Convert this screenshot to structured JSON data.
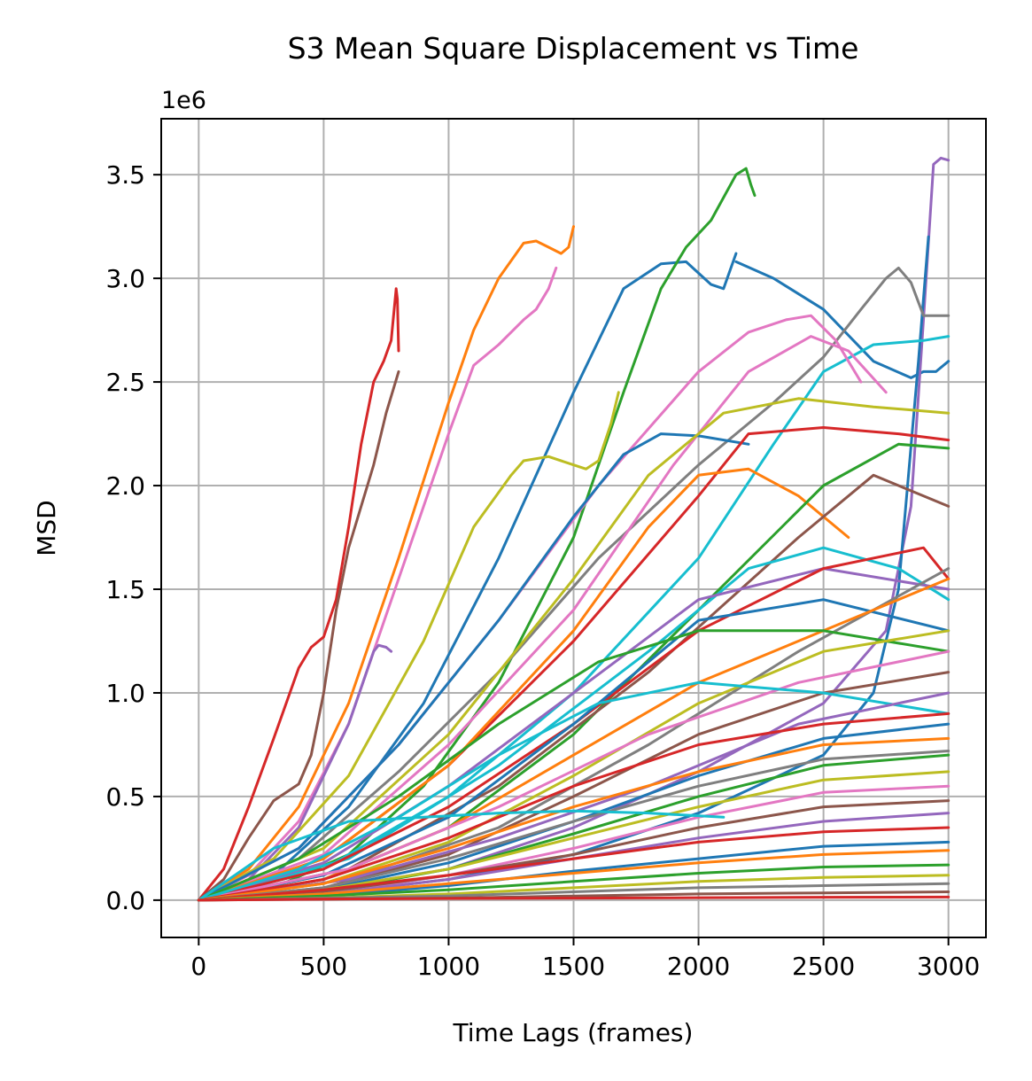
{
  "chart_data": {
    "type": "line",
    "title": "S3 Mean Square Displacement vs Time",
    "xlabel": "Time Lags (frames)",
    "ylabel": "MSD",
    "y_offset_label": "1e6",
    "xlim": [
      -150,
      3150
    ],
    "ylim": [
      -0.18,
      3.77
    ],
    "y_scale_note": "values in units of 1e6",
    "xticks": [
      0,
      500,
      1000,
      1500,
      2000,
      2500,
      3000
    ],
    "xtick_labels": [
      "0",
      "500",
      "1000",
      "1500",
      "2000",
      "2500",
      "3000"
    ],
    "yticks": [
      0.0,
      0.5,
      1.0,
      1.5,
      2.0,
      2.5,
      3.0,
      3.5
    ],
    "ytick_labels": [
      "0.0",
      "0.5",
      "1.0",
      "1.5",
      "2.0",
      "2.5",
      "3.0",
      "3.5"
    ],
    "grid": true,
    "colors": [
      "#1f77b4",
      "#ff7f0e",
      "#2ca02c",
      "#d62728",
      "#9467bd",
      "#8c564b",
      "#e377c2",
      "#7f7f7f",
      "#bcbd22",
      "#17becf"
    ],
    "series": [
      {
        "color": "#d62728",
        "x": [
          0,
          100,
          200,
          300,
          400,
          450,
          500,
          550,
          600,
          650,
          700,
          740,
          770,
          790,
          795,
          800
        ],
        "y": [
          0,
          0.15,
          0.45,
          0.78,
          1.12,
          1.22,
          1.27,
          1.45,
          1.8,
          2.2,
          2.5,
          2.6,
          2.7,
          2.95,
          2.9,
          2.65
        ]
      },
      {
        "color": "#8c564b",
        "x": [
          0,
          100,
          200,
          300,
          400,
          450,
          500,
          550,
          600,
          650,
          700,
          750,
          800
        ],
        "y": [
          0,
          0.1,
          0.3,
          0.48,
          0.56,
          0.7,
          1.0,
          1.4,
          1.7,
          1.9,
          2.1,
          2.35,
          2.55
        ]
      },
      {
        "color": "#ff7f0e",
        "x": [
          0,
          200,
          400,
          600,
          800,
          1000,
          1100,
          1200,
          1300,
          1350,
          1400,
          1450,
          1480,
          1500
        ],
        "y": [
          0,
          0.15,
          0.45,
          0.95,
          1.65,
          2.4,
          2.75,
          3.0,
          3.17,
          3.18,
          3.15,
          3.12,
          3.15,
          3.25
        ]
      },
      {
        "color": "#e377c2",
        "x": [
          0,
          200,
          400,
          600,
          800,
          1000,
          1100,
          1200,
          1300,
          1350,
          1400,
          1430
        ],
        "y": [
          0,
          0.12,
          0.38,
          0.85,
          1.55,
          2.25,
          2.58,
          2.68,
          2.8,
          2.85,
          2.95,
          3.05
        ]
      },
      {
        "color": "#9467bd",
        "x": [
          0,
          200,
          400,
          600,
          700,
          720,
          750,
          770
        ],
        "y": [
          0,
          0.1,
          0.35,
          0.85,
          1.2,
          1.23,
          1.22,
          1.2
        ]
      },
      {
        "color": "#1f77b4",
        "x": [
          0,
          300,
          600,
          900,
          1200,
          1500,
          1700,
          1850,
          1950,
          2050,
          2100,
          2150
        ],
        "y": [
          0,
          0.12,
          0.45,
          0.95,
          1.65,
          2.45,
          2.95,
          3.07,
          3.08,
          2.97,
          2.95,
          3.12
        ]
      },
      {
        "color": "#1f77b4",
        "x": [
          2150,
          2300,
          2500,
          2700,
          2850,
          2900,
          2950,
          3000
        ],
        "y": [
          3.08,
          3.0,
          2.85,
          2.6,
          2.52,
          2.55,
          2.55,
          2.6
        ]
      },
      {
        "color": "#2ca02c",
        "x": [
          0,
          300,
          600,
          900,
          1200,
          1500,
          1700,
          1850,
          1950,
          2050,
          2150,
          2190,
          2210,
          2225
        ],
        "y": [
          0,
          0.06,
          0.22,
          0.55,
          1.05,
          1.75,
          2.45,
          2.95,
          3.15,
          3.28,
          3.5,
          3.53,
          3.45,
          3.4
        ]
      },
      {
        "color": "#bcbd22",
        "x": [
          0,
          300,
          600,
          900,
          1100,
          1250,
          1300,
          1400,
          1500,
          1550,
          1600,
          1650,
          1680
        ],
        "y": [
          0,
          0.2,
          0.6,
          1.25,
          1.8,
          2.05,
          2.12,
          2.14,
          2.1,
          2.08,
          2.12,
          2.3,
          2.45
        ]
      },
      {
        "color": "#9467bd",
        "x": [
          0,
          500,
          1000,
          1500,
          2000,
          2500,
          2750,
          2850,
          2900,
          2940,
          2970,
          3000
        ],
        "y": [
          0,
          0.05,
          0.15,
          0.35,
          0.62,
          0.95,
          1.3,
          1.9,
          2.8,
          3.55,
          3.58,
          3.57
        ]
      },
      {
        "color": "#1f77b4",
        "x": [
          0,
          500,
          1000,
          1500,
          2000,
          2500,
          2700,
          2800,
          2880,
          2920
        ],
        "y": [
          0,
          0.03,
          0.1,
          0.22,
          0.42,
          0.7,
          1.0,
          1.5,
          2.6,
          3.2
        ]
      },
      {
        "color": "#7f7f7f",
        "x": [
          0,
          400,
          800,
          1200,
          1600,
          2000,
          2300,
          2500,
          2650,
          2750,
          2800,
          2850,
          2900,
          3000
        ],
        "y": [
          0,
          0.2,
          0.62,
          1.1,
          1.65,
          2.1,
          2.4,
          2.62,
          2.85,
          3.0,
          3.05,
          2.98,
          2.82,
          2.82
        ]
      },
      {
        "color": "#17becf",
        "x": [
          0,
          500,
          1000,
          1500,
          2000,
          2300,
          2500,
          2700,
          2900,
          3000
        ],
        "y": [
          0,
          0.15,
          0.5,
          1.0,
          1.65,
          2.2,
          2.55,
          2.68,
          2.7,
          2.72
        ]
      },
      {
        "color": "#e377c2",
        "x": [
          0,
          400,
          800,
          1200,
          1600,
          2000,
          2200,
          2350,
          2450,
          2550,
          2650
        ],
        "y": [
          0,
          0.25,
          0.75,
          1.35,
          2.0,
          2.55,
          2.74,
          2.8,
          2.82,
          2.7,
          2.5
        ]
      },
      {
        "color": "#e377c2",
        "x": [
          0,
          500,
          1000,
          1500,
          1900,
          2200,
          2450,
          2600,
          2750
        ],
        "y": [
          0,
          0.22,
          0.75,
          1.4,
          2.1,
          2.55,
          2.72,
          2.65,
          2.45
        ]
      },
      {
        "color": "#1f77b4",
        "x": [
          0,
          400,
          800,
          1200,
          1500,
          1700,
          1850,
          2000,
          2200
        ],
        "y": [
          0,
          0.25,
          0.75,
          1.35,
          1.85,
          2.15,
          2.25,
          2.24,
          2.2
        ]
      },
      {
        "color": "#d62728",
        "x": [
          0,
          500,
          1000,
          1500,
          2000,
          2200,
          2500,
          2800,
          3000
        ],
        "y": [
          0,
          0.2,
          0.65,
          1.25,
          1.95,
          2.25,
          2.28,
          2.25,
          2.22
        ]
      },
      {
        "color": "#bcbd22",
        "x": [
          0,
          500,
          1000,
          1500,
          1800,
          2100,
          2400,
          2700,
          3000
        ],
        "y": [
          0,
          0.25,
          0.8,
          1.55,
          2.05,
          2.35,
          2.42,
          2.38,
          2.35
        ]
      },
      {
        "color": "#ff7f0e",
        "x": [
          0,
          500,
          1000,
          1500,
          1800,
          2000,
          2200,
          2400,
          2600
        ],
        "y": [
          0,
          0.2,
          0.65,
          1.3,
          1.8,
          2.05,
          2.08,
          1.95,
          1.75
        ]
      },
      {
        "color": "#2ca02c",
        "x": [
          0,
          500,
          1000,
          1500,
          2000,
          2500,
          2800,
          3000
        ],
        "y": [
          0,
          0.1,
          0.35,
          0.8,
          1.4,
          2.0,
          2.2,
          2.18
        ]
      },
      {
        "color": "#8c564b",
        "x": [
          0,
          600,
          1200,
          1800,
          2400,
          2700,
          3000
        ],
        "y": [
          0,
          0.15,
          0.55,
          1.1,
          1.75,
          2.05,
          1.9
        ]
      },
      {
        "color": "#17becf",
        "x": [
          0,
          600,
          1200,
          1800,
          2200,
          2500,
          2800,
          3000
        ],
        "y": [
          0,
          0.2,
          0.65,
          1.2,
          1.6,
          1.7,
          1.6,
          1.45
        ]
      },
      {
        "color": "#9467bd",
        "x": [
          0,
          500,
          1000,
          1500,
          2000,
          2500,
          3000
        ],
        "y": [
          0,
          0.18,
          0.55,
          1.0,
          1.45,
          1.6,
          1.5
        ]
      },
      {
        "color": "#d62728",
        "x": [
          0,
          500,
          1000,
          1500,
          2000,
          2500,
          2900,
          3000
        ],
        "y": [
          0,
          0.15,
          0.45,
          0.85,
          1.3,
          1.6,
          1.7,
          1.55
        ]
      },
      {
        "color": "#7f7f7f",
        "x": [
          0,
          600,
          1200,
          1800,
          2400,
          3000
        ],
        "y": [
          0,
          0.1,
          0.35,
          0.75,
          1.2,
          1.6
        ]
      },
      {
        "color": "#1f77b4",
        "x": [
          0,
          500,
          1000,
          1500,
          2000,
          2500,
          3000
        ],
        "y": [
          0,
          0.12,
          0.4,
          0.85,
          1.35,
          1.45,
          1.3
        ]
      },
      {
        "color": "#ff7f0e",
        "x": [
          0,
          500,
          1000,
          1500,
          2000,
          2500,
          3000
        ],
        "y": [
          0,
          0.1,
          0.35,
          0.7,
          1.05,
          1.3,
          1.55
        ]
      },
      {
        "color": "#2ca02c",
        "x": [
          0,
          400,
          800,
          1200,
          1600,
          2000,
          2500,
          3000
        ],
        "y": [
          0,
          0.2,
          0.5,
          0.85,
          1.15,
          1.3,
          1.3,
          1.2
        ]
      },
      {
        "color": "#bcbd22",
        "x": [
          0,
          500,
          1000,
          1500,
          2000,
          2500,
          3000
        ],
        "y": [
          0,
          0.08,
          0.28,
          0.6,
          0.95,
          1.2,
          1.3
        ]
      },
      {
        "color": "#e377c2",
        "x": [
          0,
          600,
          1200,
          1800,
          2400,
          3000
        ],
        "y": [
          0,
          0.15,
          0.45,
          0.8,
          1.05,
          1.2
        ]
      },
      {
        "color": "#8c564b",
        "x": [
          0,
          500,
          1000,
          1500,
          2000,
          2500,
          3000
        ],
        "y": [
          0,
          0.06,
          0.22,
          0.5,
          0.8,
          1.0,
          1.1
        ]
      },
      {
        "color": "#17becf",
        "x": [
          0,
          400,
          800,
          1200,
          1600,
          2000,
          2500,
          3000
        ],
        "y": [
          0,
          0.15,
          0.4,
          0.7,
          0.95,
          1.05,
          1.0,
          0.9
        ]
      },
      {
        "color": "#9467bd",
        "x": [
          0,
          600,
          1200,
          1800,
          2400,
          3000
        ],
        "y": [
          0,
          0.1,
          0.3,
          0.55,
          0.85,
          1.0
        ]
      },
      {
        "color": "#d62728",
        "x": [
          0,
          500,
          1000,
          1500,
          2000,
          2500,
          3000
        ],
        "y": [
          0,
          0.1,
          0.3,
          0.55,
          0.75,
          0.85,
          0.9
        ]
      },
      {
        "color": "#1f77b4",
        "x": [
          0,
          500,
          1000,
          1500,
          2000,
          2500,
          3000
        ],
        "y": [
          0,
          0.05,
          0.18,
          0.38,
          0.6,
          0.78,
          0.85
        ]
      },
      {
        "color": "#ff7f0e",
        "x": [
          0,
          500,
          1000,
          1500,
          2000,
          2500,
          3000
        ],
        "y": [
          0,
          0.08,
          0.25,
          0.45,
          0.62,
          0.75,
          0.78
        ]
      },
      {
        "color": "#2ca02c",
        "x": [
          0,
          500,
          1000,
          1500,
          2000,
          2500,
          3000
        ],
        "y": [
          0,
          0.04,
          0.15,
          0.32,
          0.5,
          0.65,
          0.7
        ]
      },
      {
        "color": "#7f7f7f",
        "x": [
          0,
          500,
          1000,
          1500,
          2000,
          2500,
          3000
        ],
        "y": [
          0,
          0.06,
          0.2,
          0.38,
          0.55,
          0.68,
          0.72
        ]
      },
      {
        "color": "#bcbd22",
        "x": [
          0,
          500,
          1000,
          1500,
          2000,
          2500,
          3000
        ],
        "y": [
          0,
          0.05,
          0.15,
          0.3,
          0.45,
          0.58,
          0.62
        ]
      },
      {
        "color": "#e377c2",
        "x": [
          0,
          500,
          1000,
          1500,
          2000,
          2500,
          3000
        ],
        "y": [
          0,
          0.03,
          0.12,
          0.25,
          0.4,
          0.52,
          0.55
        ]
      },
      {
        "color": "#8c564b",
        "x": [
          0,
          500,
          1000,
          1500,
          2000,
          2500,
          3000
        ],
        "y": [
          0,
          0.04,
          0.12,
          0.22,
          0.35,
          0.45,
          0.48
        ]
      },
      {
        "color": "#17becf",
        "x": [
          0,
          300,
          600,
          900,
          1200,
          1500,
          1800,
          2100
        ],
        "y": [
          0,
          0.25,
          0.38,
          0.4,
          0.42,
          0.43,
          0.42,
          0.4
        ]
      },
      {
        "color": "#9467bd",
        "x": [
          0,
          500,
          1000,
          1500,
          2000,
          2500,
          3000
        ],
        "y": [
          0,
          0.03,
          0.1,
          0.2,
          0.3,
          0.38,
          0.42
        ]
      },
      {
        "color": "#d62728",
        "x": [
          0,
          500,
          1000,
          1500,
          2000,
          2500,
          3000
        ],
        "y": [
          0,
          0.05,
          0.12,
          0.2,
          0.28,
          0.33,
          0.35
        ]
      },
      {
        "color": "#1f77b4",
        "x": [
          0,
          500,
          1000,
          1500,
          2000,
          2500,
          3000
        ],
        "y": [
          0,
          0.02,
          0.07,
          0.14,
          0.2,
          0.26,
          0.28
        ]
      },
      {
        "color": "#ff7f0e",
        "x": [
          0,
          500,
          1000,
          1500,
          2000,
          2500,
          3000
        ],
        "y": [
          0,
          0.03,
          0.08,
          0.13,
          0.18,
          0.22,
          0.24
        ]
      },
      {
        "color": "#2ca02c",
        "x": [
          0,
          500,
          1000,
          1500,
          2000,
          2500,
          3000
        ],
        "y": [
          0,
          0.02,
          0.05,
          0.09,
          0.13,
          0.16,
          0.17
        ]
      },
      {
        "color": "#bcbd22",
        "x": [
          0,
          500,
          1000,
          1500,
          2000,
          2500,
          3000
        ],
        "y": [
          0,
          0.01,
          0.03,
          0.06,
          0.09,
          0.11,
          0.12
        ]
      },
      {
        "color": "#7f7f7f",
        "x": [
          0,
          500,
          1000,
          1500,
          2000,
          2500,
          3000
        ],
        "y": [
          0,
          0.01,
          0.02,
          0.04,
          0.06,
          0.07,
          0.08
        ]
      },
      {
        "color": "#8c564b",
        "x": [
          0,
          500,
          1000,
          1500,
          2000,
          2500,
          3000
        ],
        "y": [
          0,
          0.005,
          0.01,
          0.02,
          0.03,
          0.035,
          0.04
        ]
      },
      {
        "color": "#d62728",
        "x": [
          0,
          500,
          1000,
          1500,
          2000,
          2500,
          3000
        ],
        "y": [
          0,
          0.005,
          0.008,
          0.01,
          0.012,
          0.014,
          0.015
        ]
      }
    ]
  }
}
